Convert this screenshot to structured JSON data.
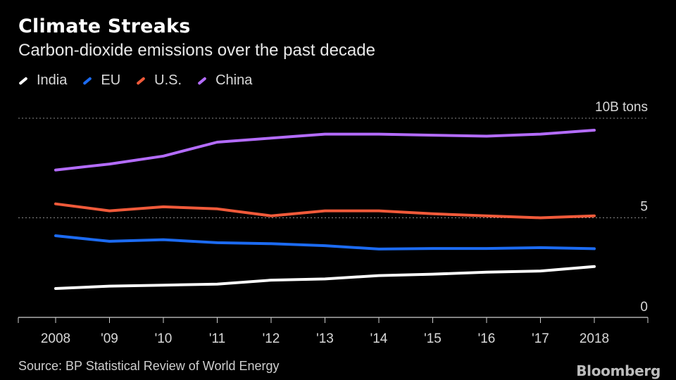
{
  "chart_data": {
    "type": "line",
    "title": "Climate Streaks",
    "subtitle": "Carbon-dioxide emissions over the past decade",
    "ylabel": "10B tons",
    "ylim": [
      0,
      10
    ],
    "ytick_labels": [
      {
        "value": 0,
        "label": "0"
      },
      {
        "value": 5,
        "label": "5"
      },
      {
        "value": 10,
        "label": "10B tons"
      }
    ],
    "x": [
      2008,
      2009,
      2010,
      2011,
      2012,
      2013,
      2014,
      2015,
      2016,
      2017,
      2018
    ],
    "xtick_labels": [
      "2008",
      "'09",
      "'10",
      "'11",
      "'12",
      "'13",
      "'14",
      "'15",
      "'16",
      "'17",
      "2018"
    ],
    "series": [
      {
        "name": "India",
        "color": "#ffffff",
        "values": [
          1.45,
          1.57,
          1.62,
          1.67,
          1.87,
          1.93,
          2.1,
          2.17,
          2.27,
          2.33,
          2.55
        ]
      },
      {
        "name": "EU",
        "color": "#1c6bf2",
        "values": [
          4.1,
          3.82,
          3.9,
          3.75,
          3.7,
          3.6,
          3.43,
          3.46,
          3.46,
          3.5,
          3.45
        ]
      },
      {
        "name": "U.S.",
        "color": "#f05a3a",
        "values": [
          5.7,
          5.35,
          5.55,
          5.45,
          5.1,
          5.35,
          5.35,
          5.2,
          5.1,
          5.0,
          5.1
        ]
      },
      {
        "name": "China",
        "color": "#b46cff",
        "values": [
          7.4,
          7.7,
          8.1,
          8.8,
          9.0,
          9.2,
          9.2,
          9.15,
          9.1,
          9.2,
          9.4
        ]
      }
    ],
    "grid": "dotted horizontal",
    "legend_position": "top-left"
  },
  "source": "Source: BP Statistical Review of World Energy",
  "brand": "Bloomberg"
}
